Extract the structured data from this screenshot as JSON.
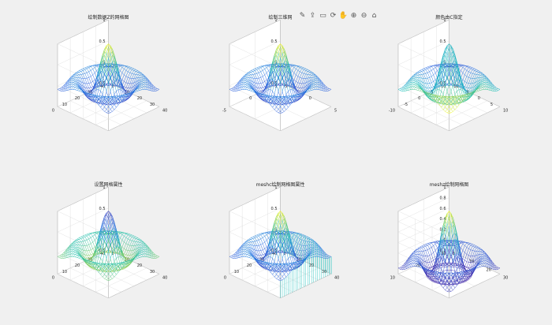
{
  "toolbar": {
    "icons": [
      "brush-icon",
      "export-icon",
      "data-tips-icon",
      "rotate-icon",
      "pan-icon",
      "zoom-in-icon",
      "zoom-out-icon",
      "home-icon"
    ]
  },
  "colors": {
    "figure_bg": "#f0f0f0",
    "axes_bg": "#ffffff",
    "pane_grid": "#dcdcdc",
    "mesh_low": "#3e26a8",
    "mesh_mid": "#12beb9",
    "mesh_high": "#f9fb0e",
    "skirt": "#24a4e0"
  },
  "chart_data": [
    {
      "type": "mesh",
      "title": "绘制数据Z的网格图",
      "zlim": [
        -0.5,
        1
      ],
      "ztick_labels": [
        "-0.5",
        "0",
        "0.5",
        "1"
      ],
      "xtick_labels": [
        "0",
        "10",
        "20",
        "30",
        "40"
      ],
      "ytick_labels": [
        "0",
        "10",
        "20",
        "30",
        "40"
      ],
      "function": "sin(r)/r",
      "grid": "on",
      "colormap": "parula"
    },
    {
      "type": "mesh",
      "title": "绘制三维网",
      "zlim": [
        -0.5,
        1
      ],
      "ztick_labels": [
        "-0.5",
        "0",
        "0.5",
        "1"
      ],
      "xtick_labels": [
        "-5",
        "0",
        "5"
      ],
      "ytick_labels": [
        "-5",
        "0",
        "5"
      ],
      "function": "sin(r)/r",
      "grid": "on",
      "colormap": "parula"
    },
    {
      "type": "mesh",
      "title": "颜色由C指定",
      "zlim": [
        -0.5,
        1
      ],
      "ztick_labels": [
        "-0.5",
        "0",
        "0.5",
        "1"
      ],
      "xtick_labels": [
        "-10",
        "-5",
        "0",
        "5",
        "10"
      ],
      "ytick_labels": [
        "-10",
        "-5",
        "0",
        "5",
        "10"
      ],
      "function": "sin(r)/r",
      "grid": "on",
      "colormap": "gradient"
    },
    {
      "type": "mesh",
      "title": "设置网格属性",
      "zlim": [
        -0.5,
        1
      ],
      "ztick_labels": [
        "-0.5",
        "0",
        "0.5",
        "1"
      ],
      "xtick_labels": [
        "0",
        "10",
        "20",
        "30",
        "40"
      ],
      "ytick_labels": [
        "0",
        "10",
        "20",
        "30",
        "40"
      ],
      "function": "sin(r)/r",
      "grid": "on",
      "colormap": "inverted"
    },
    {
      "type": "meshc",
      "title": "meshc绘制网格图属性",
      "zlim": [
        -0.5,
        1
      ],
      "ztick_labels": [
        "-0.5",
        "0",
        "0.5",
        "1"
      ],
      "xtick_labels": [
        "0",
        "10",
        "20",
        "30",
        "40"
      ],
      "ytick_labels": [
        "0",
        "10",
        "20",
        "30",
        "40"
      ],
      "function": "sin(r)/r",
      "grid": "on",
      "colormap": "parula"
    },
    {
      "type": "meshz",
      "title": "meshz绘制网格图",
      "zlim": [
        -0.2,
        1
      ],
      "ztick_labels": [
        "-0.2",
        "0",
        "0.2",
        "0.4",
        "0.6",
        "0.8",
        "1"
      ],
      "xtick_labels": [
        "0",
        "10",
        "20",
        "30"
      ],
      "ytick_labels": [
        "10",
        "20",
        "30"
      ],
      "function": "sin(r)/r",
      "grid": "on",
      "colormap": "parula"
    }
  ]
}
